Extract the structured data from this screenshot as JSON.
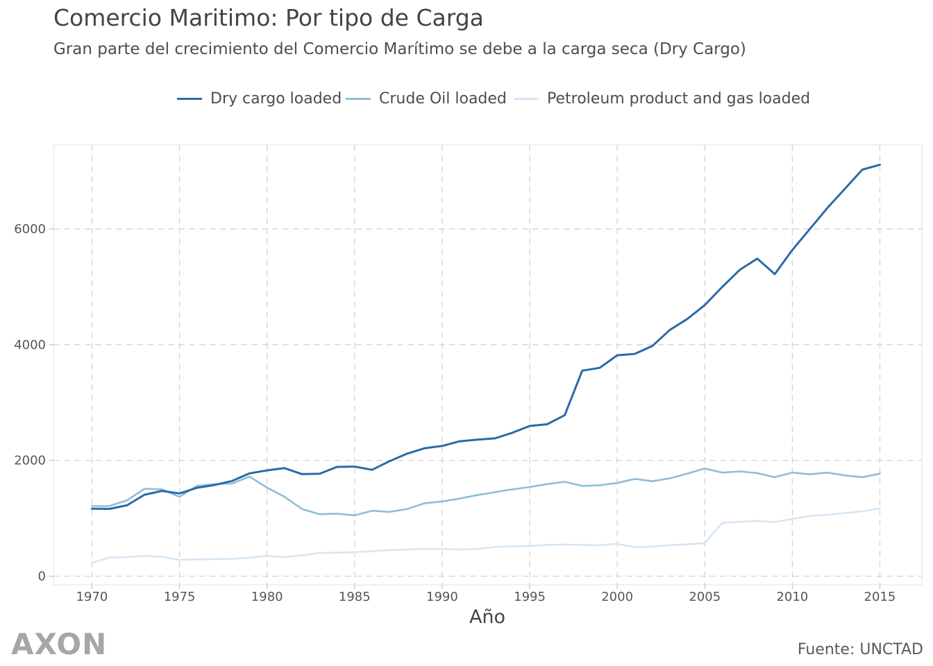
{
  "header": {
    "title": "Comercio Maritimo: Por tipo de Carga",
    "subtitle": "Gran parte del crecimiento del Comercio Marítimo se debe a la carga seca (Dry Cargo)"
  },
  "footer": {
    "brand": "AXON",
    "source": "Fuente: UNCTAD"
  },
  "chart_data": {
    "type": "line",
    "title": "Comercio Maritimo: Por tipo de Carga",
    "subtitle": "Gran parte del crecimiento del Comercio Marítimo se debe a la carga seca (Dry Cargo)",
    "xlabel": "Año",
    "ylabel": "",
    "xlim": [
      1967.8,
      1970.0
    ],
    "ylim": [
      -150,
      7450
    ],
    "x_ticks": [
      1970,
      1975,
      1980,
      1985,
      1990,
      1995,
      2000,
      2005,
      2010,
      2015
    ],
    "y_ticks": [
      0,
      2000,
      4000,
      6000
    ],
    "grid": true,
    "legend_position": "top-center",
    "x": [
      1970,
      1971,
      1972,
      1973,
      1974,
      1975,
      1976,
      1977,
      1978,
      1979,
      1980,
      1981,
      1982,
      1983,
      1984,
      1985,
      1986,
      1987,
      1988,
      1989,
      1990,
      1991,
      1992,
      1993,
      1994,
      1995,
      1996,
      1997,
      1998,
      1999,
      2000,
      2001,
      2002,
      2003,
      2004,
      2005,
      2006,
      2007,
      2008,
      2009,
      2010,
      2011,
      2012,
      2013,
      2014,
      2015
    ],
    "series": [
      {
        "name": "Dry cargo loaded",
        "color": "#2b6aa8",
        "values": [
          1165,
          1163,
          1224,
          1407,
          1473,
          1429,
          1527,
          1575,
          1644,
          1776,
          1828,
          1866,
          1763,
          1769,
          1888,
          1893,
          1837,
          1987,
          2117,
          2210,
          2250,
          2330,
          2358,
          2381,
          2476,
          2595,
          2625,
          2782,
          3550,
          3600,
          3817,
          3840,
          3976,
          4253,
          4443,
          4683,
          4999,
          5294,
          5487,
          5219,
          5636,
          5998,
          6361,
          6692,
          7025,
          7110
        ]
      },
      {
        "name": "Crude Oil loaded",
        "color": "#8fbcd8",
        "values": [
          1210,
          1212,
          1310,
          1510,
          1500,
          1370,
          1560,
          1590,
          1600,
          1720,
          1530,
          1370,
          1160,
          1070,
          1080,
          1050,
          1130,
          1110,
          1160,
          1260,
          1290,
          1340,
          1400,
          1450,
          1500,
          1540,
          1590,
          1630,
          1560,
          1570,
          1610,
          1680,
          1640,
          1690,
          1770,
          1860,
          1790,
          1810,
          1780,
          1710,
          1790,
          1760,
          1790,
          1740,
          1710,
          1770
        ]
      },
      {
        "name": "Petroleum product and gas loaded",
        "color": "#d6e6f4",
        "values": [
          230,
          320,
          330,
          350,
          335,
          280,
          290,
          295,
          300,
          320,
          350,
          330,
          360,
          400,
          405,
          415,
          430,
          450,
          460,
          470,
          470,
          460,
          470,
          505,
          515,
          520,
          540,
          545,
          540,
          535,
          560,
          500,
          510,
          535,
          550,
          570,
          920,
          940,
          955,
          935,
          990,
          1040,
          1060,
          1090,
          1120,
          1175
        ]
      }
    ]
  }
}
